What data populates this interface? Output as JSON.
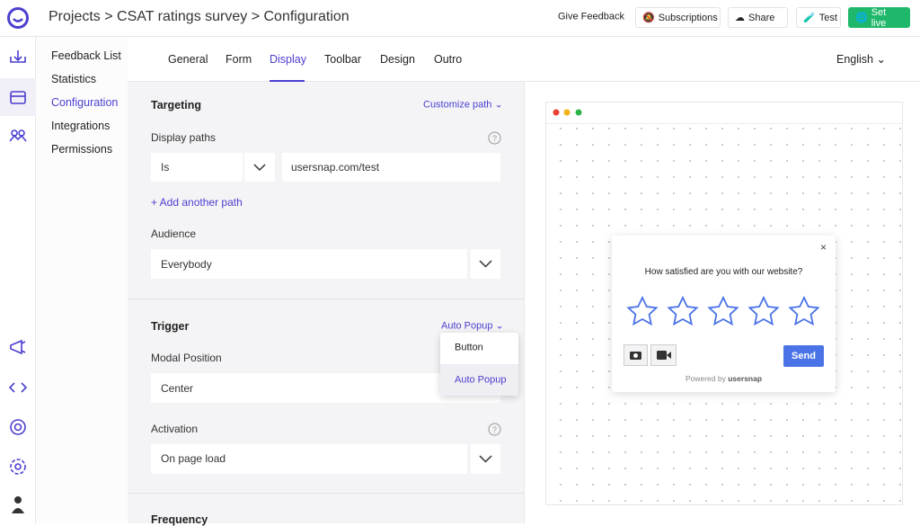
{
  "header": {
    "breadcrumb": [
      "Projects",
      "CSAT ratings survey",
      "Configuration"
    ],
    "actions": [
      "Give Feedback",
      "Subscriptions",
      "Share",
      "Test",
      "Set live"
    ]
  },
  "sidenav": {
    "items": [
      "Feedback List",
      "Statistics",
      "Configuration",
      "Integrations",
      "Permissions"
    ],
    "active": 2
  },
  "tabs": {
    "items": [
      "General",
      "Form",
      "Display",
      "Toolbar",
      "Design",
      "Outro"
    ],
    "active": 2,
    "language": "English"
  },
  "targeting": {
    "title": "Targeting",
    "customize": "Customize path",
    "display_paths": "Display paths",
    "operator": "Is",
    "path": "usersnap.com/test",
    "add_path": "+ Add another path",
    "audience_label": "Audience",
    "audience": "Everybody"
  },
  "trigger": {
    "title": "Trigger",
    "mode": "Auto Popup",
    "modal_position_label": "Modal Position",
    "modal_position": "Center",
    "options": [
      "Button",
      "Auto Popup"
    ],
    "activation_label": "Activation",
    "activation": "On page load"
  },
  "frequency": {
    "title": "Frequency"
  },
  "widget": {
    "question": "How satisfied are you with our website?",
    "send": "Send",
    "powered_by": "Powered by",
    "brand": "usersnap"
  }
}
